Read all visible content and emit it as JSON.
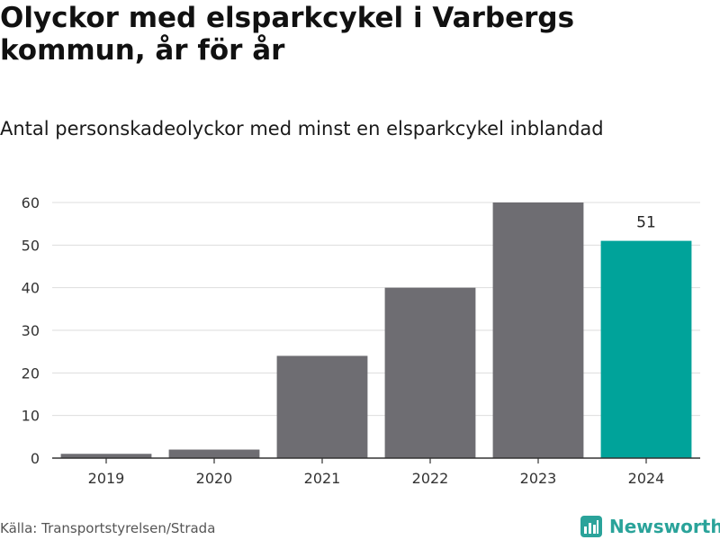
{
  "title": "Olyckor med elsparkcykel i Varbergs kommun, år för år",
  "subtitle": "Antal personskadeolyckor med minst en elsparkcykel inblandad",
  "source": "Källa: Transportstyrelsen/Strada",
  "brand": {
    "name": "Newsworthy",
    "icon": "newsworthy-logo-icon"
  },
  "colors": {
    "bar": "#6e6d72",
    "highlight": "#00a39a",
    "grid": "#dddddd",
    "brand": "#2aa39a"
  },
  "chart_data": {
    "type": "bar",
    "categories": [
      "2019",
      "2020",
      "2021",
      "2022",
      "2023",
      "2024"
    ],
    "values": [
      1,
      2,
      24,
      40,
      60,
      51
    ],
    "highlight_index": 5,
    "data_labels": [
      {
        "index": 5,
        "text": "51"
      }
    ],
    "yticks": [
      0,
      10,
      20,
      30,
      40,
      50,
      60
    ],
    "ylim": [
      0,
      60
    ],
    "xlabel": "",
    "ylabel": "",
    "grid": true,
    "legend": "none"
  }
}
